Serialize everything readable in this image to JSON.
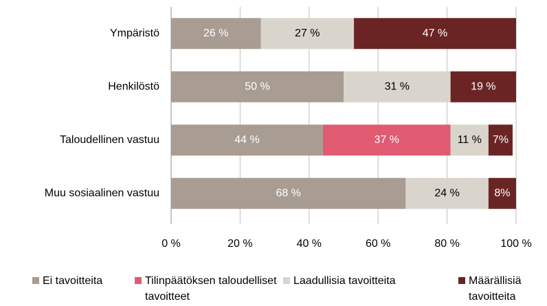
{
  "chart_data": {
    "type": "stacked_bar_horizontal",
    "categories": [
      "Ympäristö",
      "Henkilöstö",
      "Taloudellinen vastuu",
      "Muu sosiaalinen vastuu"
    ],
    "series": [
      {
        "name": "Ei tavoitteita",
        "color": "#a89c93",
        "values": [
          26,
          50,
          44,
          68
        ],
        "value_labels": [
          "26 %",
          "50 %",
          "44 %",
          "68 %"
        ]
      },
      {
        "name": "Tilinpäätöksen taloudelliset tavoitteet",
        "color": "#e05a72",
        "values": [
          null,
          null,
          37,
          null
        ],
        "value_labels": [
          null,
          null,
          "37 %",
          null
        ]
      },
      {
        "name": "Laadullisia tavoitteita",
        "color": "#d9d5cc",
        "values": [
          27,
          31,
          11,
          24
        ],
        "value_labels": [
          "27 %",
          "31 %",
          "11 %",
          "24 %"
        ]
      },
      {
        "name": "Määrällisiä tavoitteita",
        "color": "#6b2424",
        "values": [
          47,
          19,
          7,
          8
        ],
        "value_labels": [
          "47 %",
          "19 %",
          "7%",
          "8%"
        ]
      }
    ],
    "xlim": [
      0,
      100
    ],
    "xticks": [
      {
        "value": 0,
        "label": "0 %"
      },
      {
        "value": 20,
        "label": "20 %"
      },
      {
        "value": 40,
        "label": "40 %"
      },
      {
        "value": 60,
        "label": "60 %"
      },
      {
        "value": 80,
        "label": "80 %"
      },
      {
        "value": 100,
        "label": "100 %"
      }
    ],
    "grid": true,
    "legend": "bottom"
  }
}
